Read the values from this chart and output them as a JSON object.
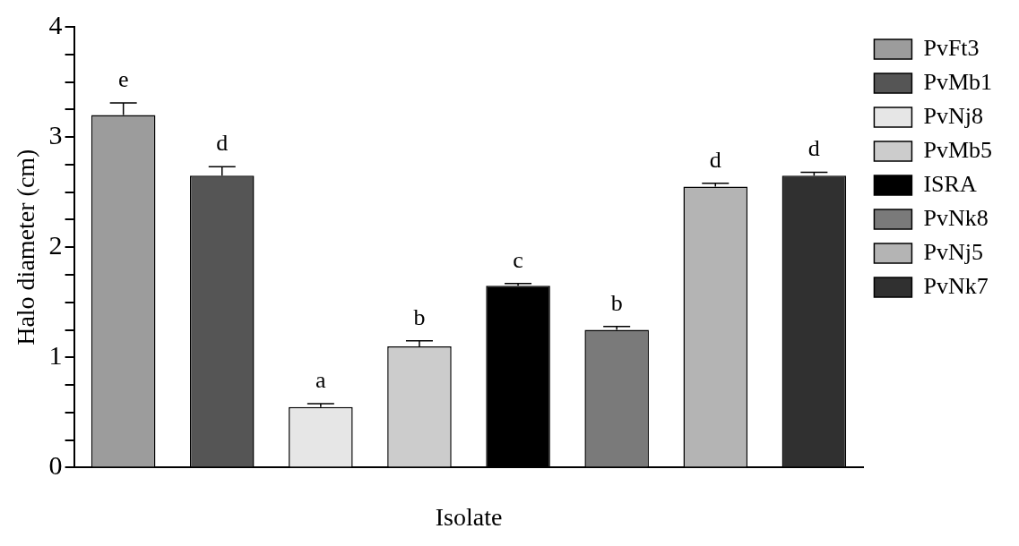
{
  "chart_data": {
    "type": "bar",
    "xlabel": "Isolate",
    "ylabel": "Halo diameter (cm)",
    "categories": [
      null,
      null,
      null,
      null,
      null,
      null,
      null,
      null
    ],
    "series": [
      {
        "name": "PvFt3",
        "color": "#9c9c9c",
        "values": [
          3.2,
          null,
          null,
          null,
          null,
          null,
          null,
          null
        ],
        "errors": [
          0.11,
          null,
          null,
          null,
          null,
          null,
          null,
          null
        ],
        "value_labels": [
          "e",
          null,
          null,
          null,
          null,
          null,
          null,
          null
        ]
      },
      {
        "name": "PvMb1",
        "color": "#555555",
        "values": [
          null,
          2.65,
          null,
          null,
          null,
          null,
          null,
          null
        ],
        "errors": [
          null,
          0.08,
          null,
          null,
          null,
          null,
          null,
          null
        ],
        "value_labels": [
          null,
          "d",
          null,
          null,
          null,
          null,
          null,
          null
        ]
      },
      {
        "name": "PvNj8",
        "color": "#e6e6e6",
        "values": [
          null,
          null,
          0.55,
          null,
          null,
          null,
          null,
          null
        ],
        "errors": [
          null,
          null,
          0.03,
          null,
          null,
          null,
          null,
          null
        ],
        "value_labels": [
          null,
          null,
          "a",
          null,
          null,
          null,
          null,
          null
        ]
      },
      {
        "name": "PvMb5",
        "color": "#cccccc",
        "values": [
          null,
          null,
          null,
          1.1,
          null,
          null,
          null,
          null
        ],
        "errors": [
          null,
          null,
          null,
          0.05,
          null,
          null,
          null,
          null
        ],
        "value_labels": [
          null,
          null,
          null,
          "b",
          null,
          null,
          null,
          null
        ]
      },
      {
        "name": "ISRA",
        "color": "#000000",
        "values": [
          null,
          null,
          null,
          null,
          1.65,
          null,
          null,
          null
        ],
        "errors": [
          null,
          null,
          null,
          null,
          0.02,
          null,
          null,
          null
        ],
        "value_labels": [
          null,
          null,
          null,
          null,
          "c",
          null,
          null,
          null
        ]
      },
      {
        "name": "PvNk8",
        "color": "#7a7a7a",
        "values": [
          null,
          null,
          null,
          null,
          null,
          1.25,
          null,
          null
        ],
        "errors": [
          null,
          null,
          null,
          null,
          null,
          0.03,
          null,
          null
        ],
        "value_labels": [
          null,
          null,
          null,
          null,
          null,
          "b",
          null,
          null
        ]
      },
      {
        "name": "PvNj5",
        "color": "#b4b4b4",
        "values": [
          null,
          null,
          null,
          null,
          null,
          null,
          2.55,
          null
        ],
        "errors": [
          null,
          null,
          null,
          null,
          null,
          null,
          0.03,
          null
        ],
        "value_labels": [
          null,
          null,
          null,
          null,
          null,
          null,
          "d",
          null
        ]
      },
      {
        "name": "PvNk7",
        "color": "#303030",
        "values": [
          null,
          null,
          null,
          null,
          null,
          null,
          null,
          2.65
        ],
        "errors": [
          null,
          null,
          null,
          null,
          null,
          null,
          null,
          0.03
        ],
        "value_labels": [
          null,
          null,
          null,
          null,
          null,
          null,
          null,
          "d"
        ]
      }
    ],
    "ylim": [
      0,
      4
    ],
    "yticks": [
      0,
      {
        "value": 0.25,
        "label": null
      },
      {
        "value": 0.5,
        "label": null
      },
      {
        "value": 0.75,
        "label": null
      },
      1,
      {
        "value": 1.25,
        "label": null
      },
      {
        "value": 1.5,
        "label": null
      },
      {
        "value": 1.75,
        "label": null
      },
      2,
      {
        "value": 2.25,
        "label": null
      },
      {
        "value": 2.5,
        "label": null
      },
      {
        "value": 2.75,
        "label": null
      },
      3,
      {
        "value": 3.25,
        "label": null
      },
      {
        "value": 3.5,
        "label": null
      },
      {
        "value": 3.75,
        "label": null
      },
      4
    ],
    "grid": false,
    "legend": "right",
    "tick_labels": "y"
  }
}
